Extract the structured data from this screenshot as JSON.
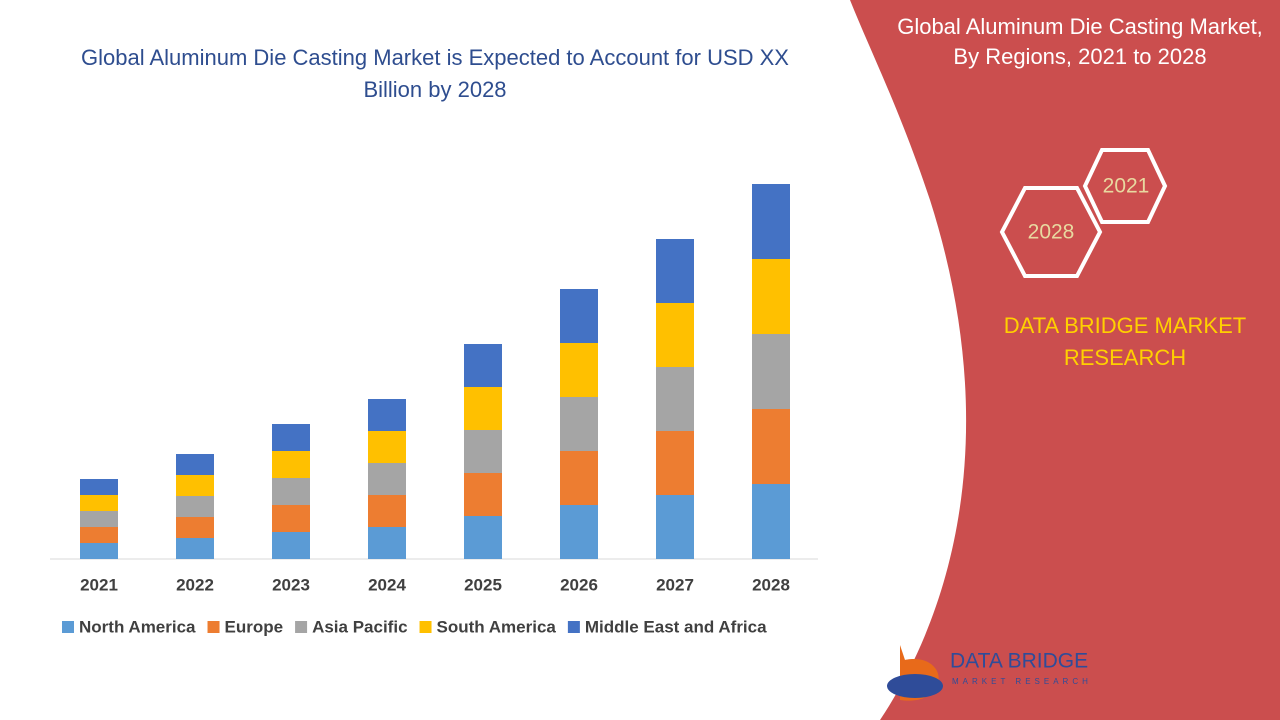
{
  "chart_data": {
    "type": "stacked_bar",
    "title": "Global Aluminum Die Casting Market is Expected to Account for USD XX Billion by 2028",
    "categories": [
      "2021",
      "2022",
      "2023",
      "2024",
      "2025",
      "2026",
      "2027",
      "2028"
    ],
    "series": [
      {
        "name": "North America",
        "color": "#5b9bd5",
        "values": [
          16,
          21,
          27,
          32,
          43,
          54,
          64,
          75
        ]
      },
      {
        "name": "Europe",
        "color": "#ed7d31",
        "values": [
          16,
          21,
          27,
          32,
          43,
          54,
          64,
          75
        ]
      },
      {
        "name": "Asia Pacific",
        "color": "#a5a5a5",
        "values": [
          16,
          21,
          27,
          32,
          43,
          54,
          64,
          75
        ]
      },
      {
        "name": "South America",
        "color": "#ffc000",
        "values": [
          16,
          21,
          27,
          32,
          43,
          54,
          64,
          75
        ]
      },
      {
        "name": "Middle East and Africa",
        "color": "#4472c4",
        "values": [
          16,
          21,
          27,
          32,
          43,
          54,
          64,
          75
        ]
      }
    ],
    "ylim": [
      0,
      400
    ],
    "legend": "bottom"
  },
  "side_panel": {
    "title": "Global Aluminum Die Casting Market, By Regions, 2021 to 2028",
    "hex_top": "2021",
    "hex_bottom": "2028",
    "brand": "DATA BRIDGE MARKET RESEARCH",
    "logo_name": "DATA BRIDGE",
    "logo_sub": "MARKET RESEARCH"
  }
}
